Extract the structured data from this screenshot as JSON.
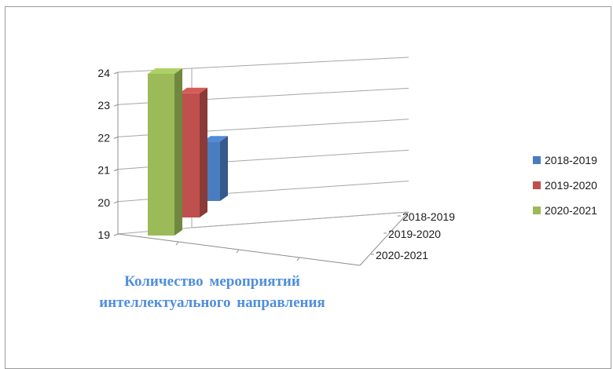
{
  "chart_data": {
    "type": "bar",
    "categories": [
      ""
    ],
    "series": [
      {
        "name": "2018-2019",
        "values": [
          21
        ],
        "color": "#4a7cc0"
      },
      {
        "name": "2019-2020",
        "values": [
          23
        ],
        "color": "#c0504d"
      },
      {
        "name": "2020-2021",
        "values": [
          24
        ],
        "color": "#9bbb59"
      }
    ],
    "ylim": [
      19,
      24
    ],
    "yticks": [
      "19",
      "20",
      "21",
      "22",
      "23",
      "24"
    ],
    "depth_axis_labels": [
      "2018-2019",
      "2019-2020",
      "2020-2021"
    ],
    "title": "Количество мероприятий интеллектуального направления",
    "caption_lines": [
      "Количество мероприятий",
      "интеллектуального направления"
    ],
    "legend": {
      "position": "right",
      "entries": [
        "2018-2019",
        "2019-2020",
        "2020-2021"
      ]
    },
    "grid": true,
    "style": "3d-column"
  }
}
